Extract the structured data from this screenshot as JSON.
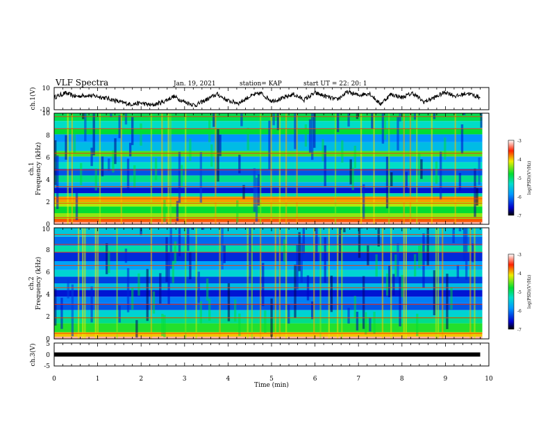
{
  "header": {
    "title": "VLF Spectra",
    "date": "Jan. 19, 2021",
    "station": "station= KAP",
    "start": "start UT =  22: 20: 1"
  },
  "chart_data": [
    {
      "type": "line",
      "panel": "ch1-waveform",
      "ylabel": "ch.1(V)",
      "ylim": [
        -10,
        10
      ],
      "yticks": [
        "10",
        "-10"
      ],
      "xlim": [
        0,
        10
      ],
      "color": "#000000",
      "x": [
        0,
        0.25,
        0.5,
        0.75,
        1.0,
        1.25,
        1.5,
        1.75,
        2.0,
        2.25,
        2.5,
        2.75,
        3.0,
        3.25,
        3.5,
        3.75,
        4.0,
        4.25,
        4.5,
        4.75,
        5.0,
        5.25,
        5.5,
        5.75,
        6.0,
        6.25,
        6.5,
        6.75,
        7.0,
        7.25,
        7.5,
        7.75,
        8.0,
        8.25,
        8.5,
        8.75,
        9.0,
        9.25,
        9.5,
        9.8
      ],
      "values": [
        1,
        5,
        2,
        3,
        2,
        0,
        -3,
        -5,
        -4,
        -6,
        -3,
        2,
        -3,
        -6,
        -1,
        4,
        -2,
        -4,
        2,
        5,
        -2,
        0,
        4,
        -1,
        5,
        2,
        -1,
        6,
        3,
        5,
        -5,
        4,
        1,
        5,
        -3,
        1,
        6,
        2,
        5,
        1
      ]
    },
    {
      "type": "heatmap",
      "panel": "ch1-spectrogram",
      "ylabel": "Frequency (kHz)",
      "channel_label": "ch.1",
      "xlim": [
        0,
        9.85
      ],
      "ylim": [
        0,
        10
      ],
      "yticks": [
        "0",
        "2",
        "4",
        "6",
        "8",
        "10"
      ],
      "colorbar": {
        "label": "log(PSD)(V²/Hz)",
        "range": [
          -7,
          -3
        ],
        "ticks": [
          "-3",
          "-4",
          "-5",
          "-6",
          "-7"
        ]
      },
      "bands_khz": [
        {
          "from": 0.0,
          "to": 0.2,
          "level": -3.2
        },
        {
          "from": 0.2,
          "to": 0.5,
          "level": -3.7
        },
        {
          "from": 0.5,
          "to": 1.0,
          "level": -4.4
        },
        {
          "from": 1.0,
          "to": 1.6,
          "level": -4.8
        },
        {
          "from": 1.6,
          "to": 2.0,
          "level": -4.3
        },
        {
          "from": 2.0,
          "to": 2.5,
          "level": -3.9
        },
        {
          "from": 2.5,
          "to": 2.8,
          "level": -5.2
        },
        {
          "from": 2.8,
          "to": 3.3,
          "level": -6.5
        },
        {
          "from": 3.3,
          "to": 3.8,
          "level": -5.7
        },
        {
          "from": 3.8,
          "to": 4.4,
          "level": -5.1
        },
        {
          "from": 4.4,
          "to": 5.0,
          "level": -6.2
        },
        {
          "from": 5.0,
          "to": 5.6,
          "level": -5.3
        },
        {
          "from": 5.6,
          "to": 6.1,
          "level": -5.8
        },
        {
          "from": 6.1,
          "to": 6.6,
          "level": -4.6
        },
        {
          "from": 6.6,
          "to": 7.4,
          "level": -5.6
        },
        {
          "from": 7.4,
          "to": 8.1,
          "level": -5.9
        },
        {
          "from": 8.1,
          "to": 8.6,
          "level": -4.8
        },
        {
          "from": 8.6,
          "to": 9.3,
          "level": -5.3
        },
        {
          "from": 9.3,
          "to": 10.0,
          "level": -4.9
        }
      ],
      "lines_khz": [
        0.6,
        1.9,
        2.3,
        3.4,
        4.9,
        6.4,
        8.6,
        9.7
      ]
    },
    {
      "type": "heatmap",
      "panel": "ch2-spectrogram",
      "ylabel": "Frequency (kHz)",
      "channel_label": "ch.2",
      "xlim": [
        0,
        9.85
      ],
      "ylim": [
        0,
        10
      ],
      "yticks": [
        "0",
        "2",
        "4",
        "6",
        "8",
        "10"
      ],
      "colorbar": {
        "label": "log(PSD)(V²/Hz)",
        "range": [
          -7,
          -3
        ],
        "ticks": [
          "-3",
          "-4",
          "-5",
          "-6",
          "-7"
        ]
      },
      "bands_khz": [
        {
          "from": 0.0,
          "to": 0.2,
          "level": -3.2
        },
        {
          "from": 0.2,
          "to": 0.6,
          "level": -4.0
        },
        {
          "from": 0.6,
          "to": 1.4,
          "level": -4.7
        },
        {
          "from": 1.4,
          "to": 2.0,
          "level": -5.1
        },
        {
          "from": 2.0,
          "to": 2.6,
          "level": -5.4
        },
        {
          "from": 2.6,
          "to": 3.2,
          "level": -6.2
        },
        {
          "from": 3.2,
          "to": 3.8,
          "level": -6.0
        },
        {
          "from": 3.8,
          "to": 4.4,
          "level": -6.5
        },
        {
          "from": 4.4,
          "to": 5.0,
          "level": -5.6
        },
        {
          "from": 5.0,
          "to": 5.6,
          "level": -6.3
        },
        {
          "from": 5.6,
          "to": 6.2,
          "level": -5.4
        },
        {
          "from": 6.2,
          "to": 7.0,
          "level": -5.8
        },
        {
          "from": 7.0,
          "to": 7.8,
          "level": -6.4
        },
        {
          "from": 7.8,
          "to": 8.4,
          "level": -5.2
        },
        {
          "from": 8.4,
          "to": 9.2,
          "level": -6.1
        },
        {
          "from": 9.2,
          "to": 10.0,
          "level": -5.5
        }
      ],
      "lines_khz": [
        0.5,
        1.9,
        3.1,
        4.6,
        6.6,
        7.8,
        8.5,
        9.4
      ]
    },
    {
      "type": "line",
      "panel": "ch3-waveform",
      "ylabel": "ch.3(V)",
      "ylim": [
        -5,
        5
      ],
      "yticks": [
        "5",
        "0",
        "-5"
      ],
      "xlim": [
        0,
        10
      ],
      "xlabel": "Time (min)",
      "xticks": [
        "0",
        "1",
        "2",
        "3",
        "4",
        "5",
        "6",
        "7",
        "8",
        "9",
        "10"
      ],
      "x": [
        0,
        9.8
      ],
      "values": [
        0,
        0
      ]
    }
  ]
}
